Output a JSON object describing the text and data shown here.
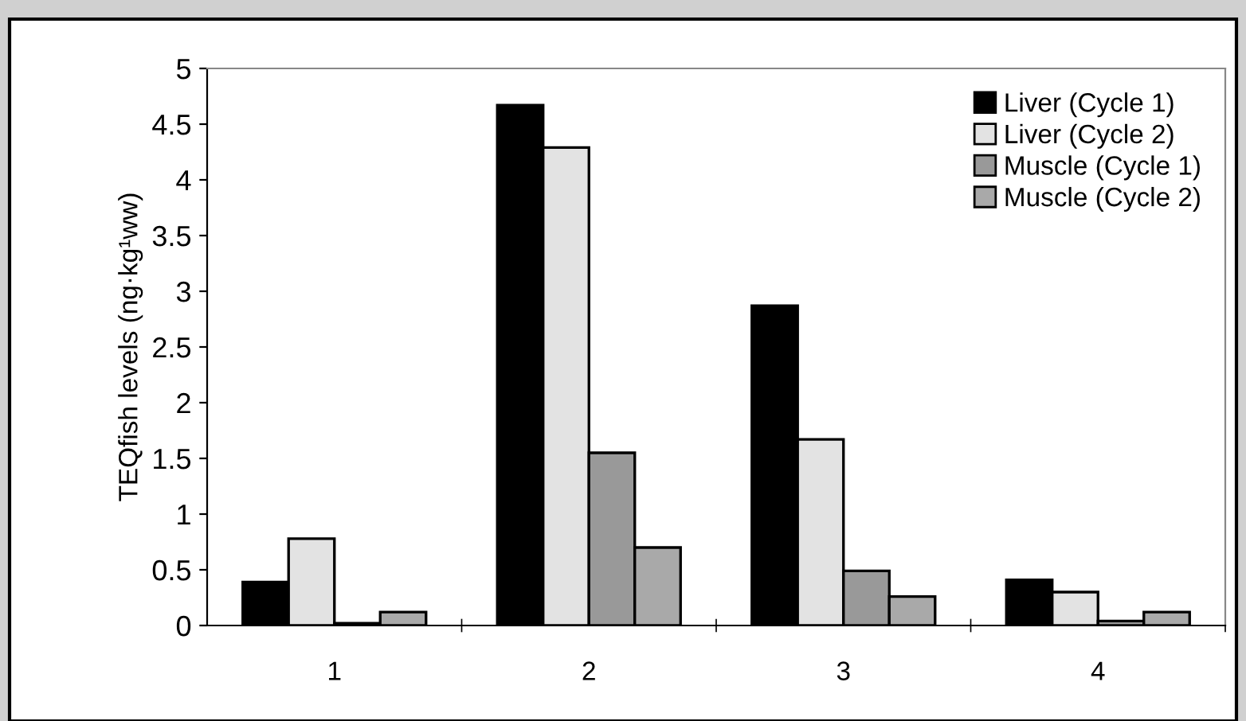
{
  "chart_data": {
    "type": "bar",
    "ylabel": "TEQfish levels (ng·kg¹ww)",
    "categories": [
      "1",
      "2",
      "3",
      "4"
    ],
    "series": [
      {
        "name": "Liver (Cycle 1)",
        "color": "#000000",
        "values": [
          0.39,
          4.67,
          2.87,
          0.41
        ]
      },
      {
        "name": "Liver (Cycle 2)",
        "color": "#e3e3e3",
        "values": [
          0.78,
          4.29,
          1.67,
          0.3
        ]
      },
      {
        "name": "Muscle (Cycle 1)",
        "color": "#999999",
        "values": [
          0.02,
          1.55,
          0.49,
          0.04
        ]
      },
      {
        "name": "Muscle (Cycle 2)",
        "color": "#a9a9a9",
        "values": [
          0.12,
          0.7,
          0.26,
          0.12
        ]
      }
    ],
    "ylim": [
      0,
      5
    ],
    "yticks": [
      0,
      0.5,
      1,
      1.5,
      2,
      2.5,
      3,
      3.5,
      4,
      4.5,
      5
    ],
    "legend": "top right"
  }
}
